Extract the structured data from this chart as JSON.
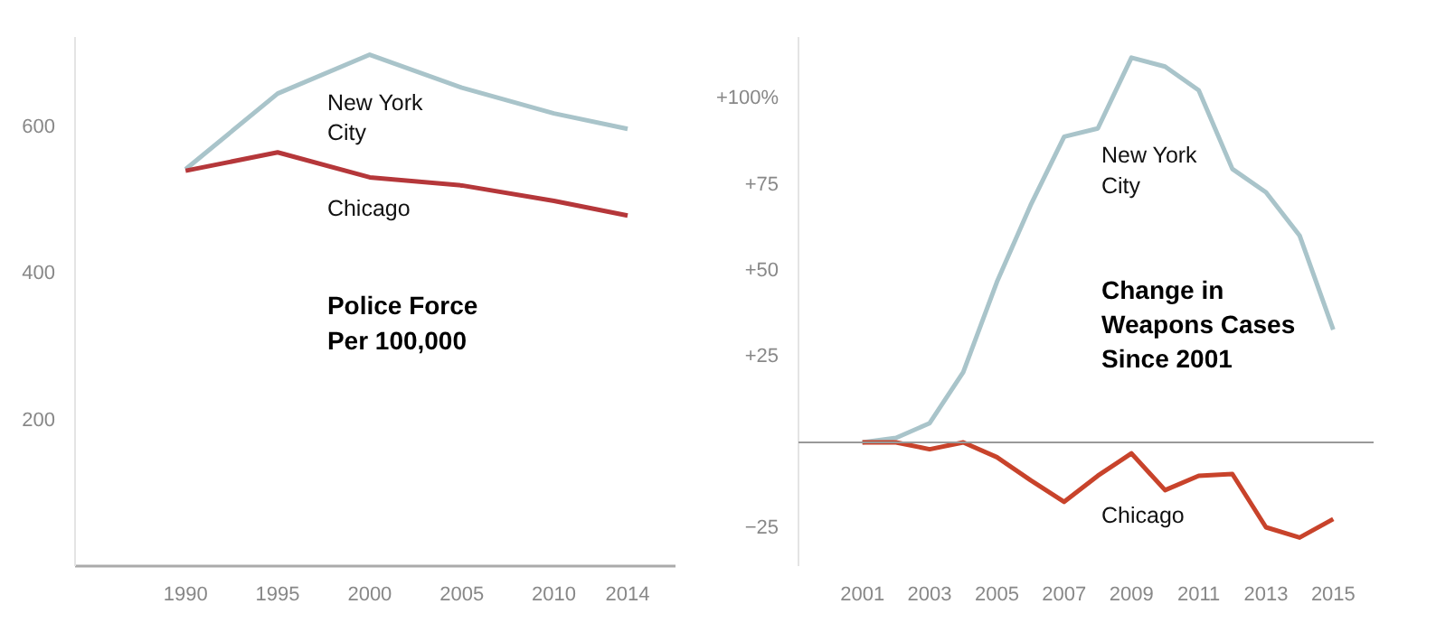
{
  "chart_data": [
    {
      "type": "line",
      "title": "Police Force Per 100,000",
      "x": [
        1990,
        1995,
        2000,
        2005,
        2010,
        2014
      ],
      "series": [
        {
          "name": "New York City",
          "color": "#a9c4ca",
          "values": [
            540,
            643,
            696,
            651,
            616,
            595
          ]
        },
        {
          "name": "Chicago",
          "color": "#b5373a",
          "values": [
            538,
            563,
            529,
            518,
            497,
            477
          ]
        }
      ],
      "xlim": [
        1984,
        2016.6
      ],
      "xticks": [
        1990,
        1995,
        2000,
        2005,
        2010,
        2014
      ],
      "ylim": [
        0,
        720
      ],
      "yticks": [
        200,
        400,
        600
      ],
      "grid": false
    },
    {
      "type": "line",
      "title": "Change in Weapons Cases Since 2001",
      "x": [
        2001,
        2002,
        2003,
        2004,
        2005,
        2006,
        2007,
        2008,
        2009,
        2010,
        2011,
        2012,
        2013,
        2014,
        2015
      ],
      "series": [
        {
          "name": "New York City",
          "color": "#a9c4ca",
          "values": [
            0,
            1.3,
            5.6,
            20.5,
            46.7,
            69,
            89,
            91.4,
            112,
            109.4,
            102.5,
            79.6,
            72.8,
            60.2,
            32.8
          ]
        },
        {
          "name": "Chicago",
          "color": "#c8432b",
          "values": [
            0,
            0,
            -2,
            0,
            -4.3,
            -11,
            -17.3,
            -9.7,
            -3.2,
            -13.9,
            -9.7,
            -9.2,
            -24.7,
            -27.7,
            -22.3
          ]
        }
      ],
      "xlim": [
        1999.1,
        2016.2
      ],
      "ylim": [
        -36,
        118
      ],
      "xticks": [
        2001,
        2003,
        2005,
        2007,
        2009,
        2011,
        2013,
        2015
      ],
      "yticks": [
        {
          "value": -25,
          "label": "−25"
        },
        {
          "value": 25,
          "label": "+25"
        },
        {
          "value": 50,
          "label": "+50"
        },
        {
          "value": 75,
          "label": "+75"
        },
        {
          "value": 100,
          "label": "+100%"
        }
      ],
      "ref_lines": [
        {
          "axis": "y",
          "value": 0,
          "color": "#999999"
        }
      ],
      "grid": false
    }
  ]
}
